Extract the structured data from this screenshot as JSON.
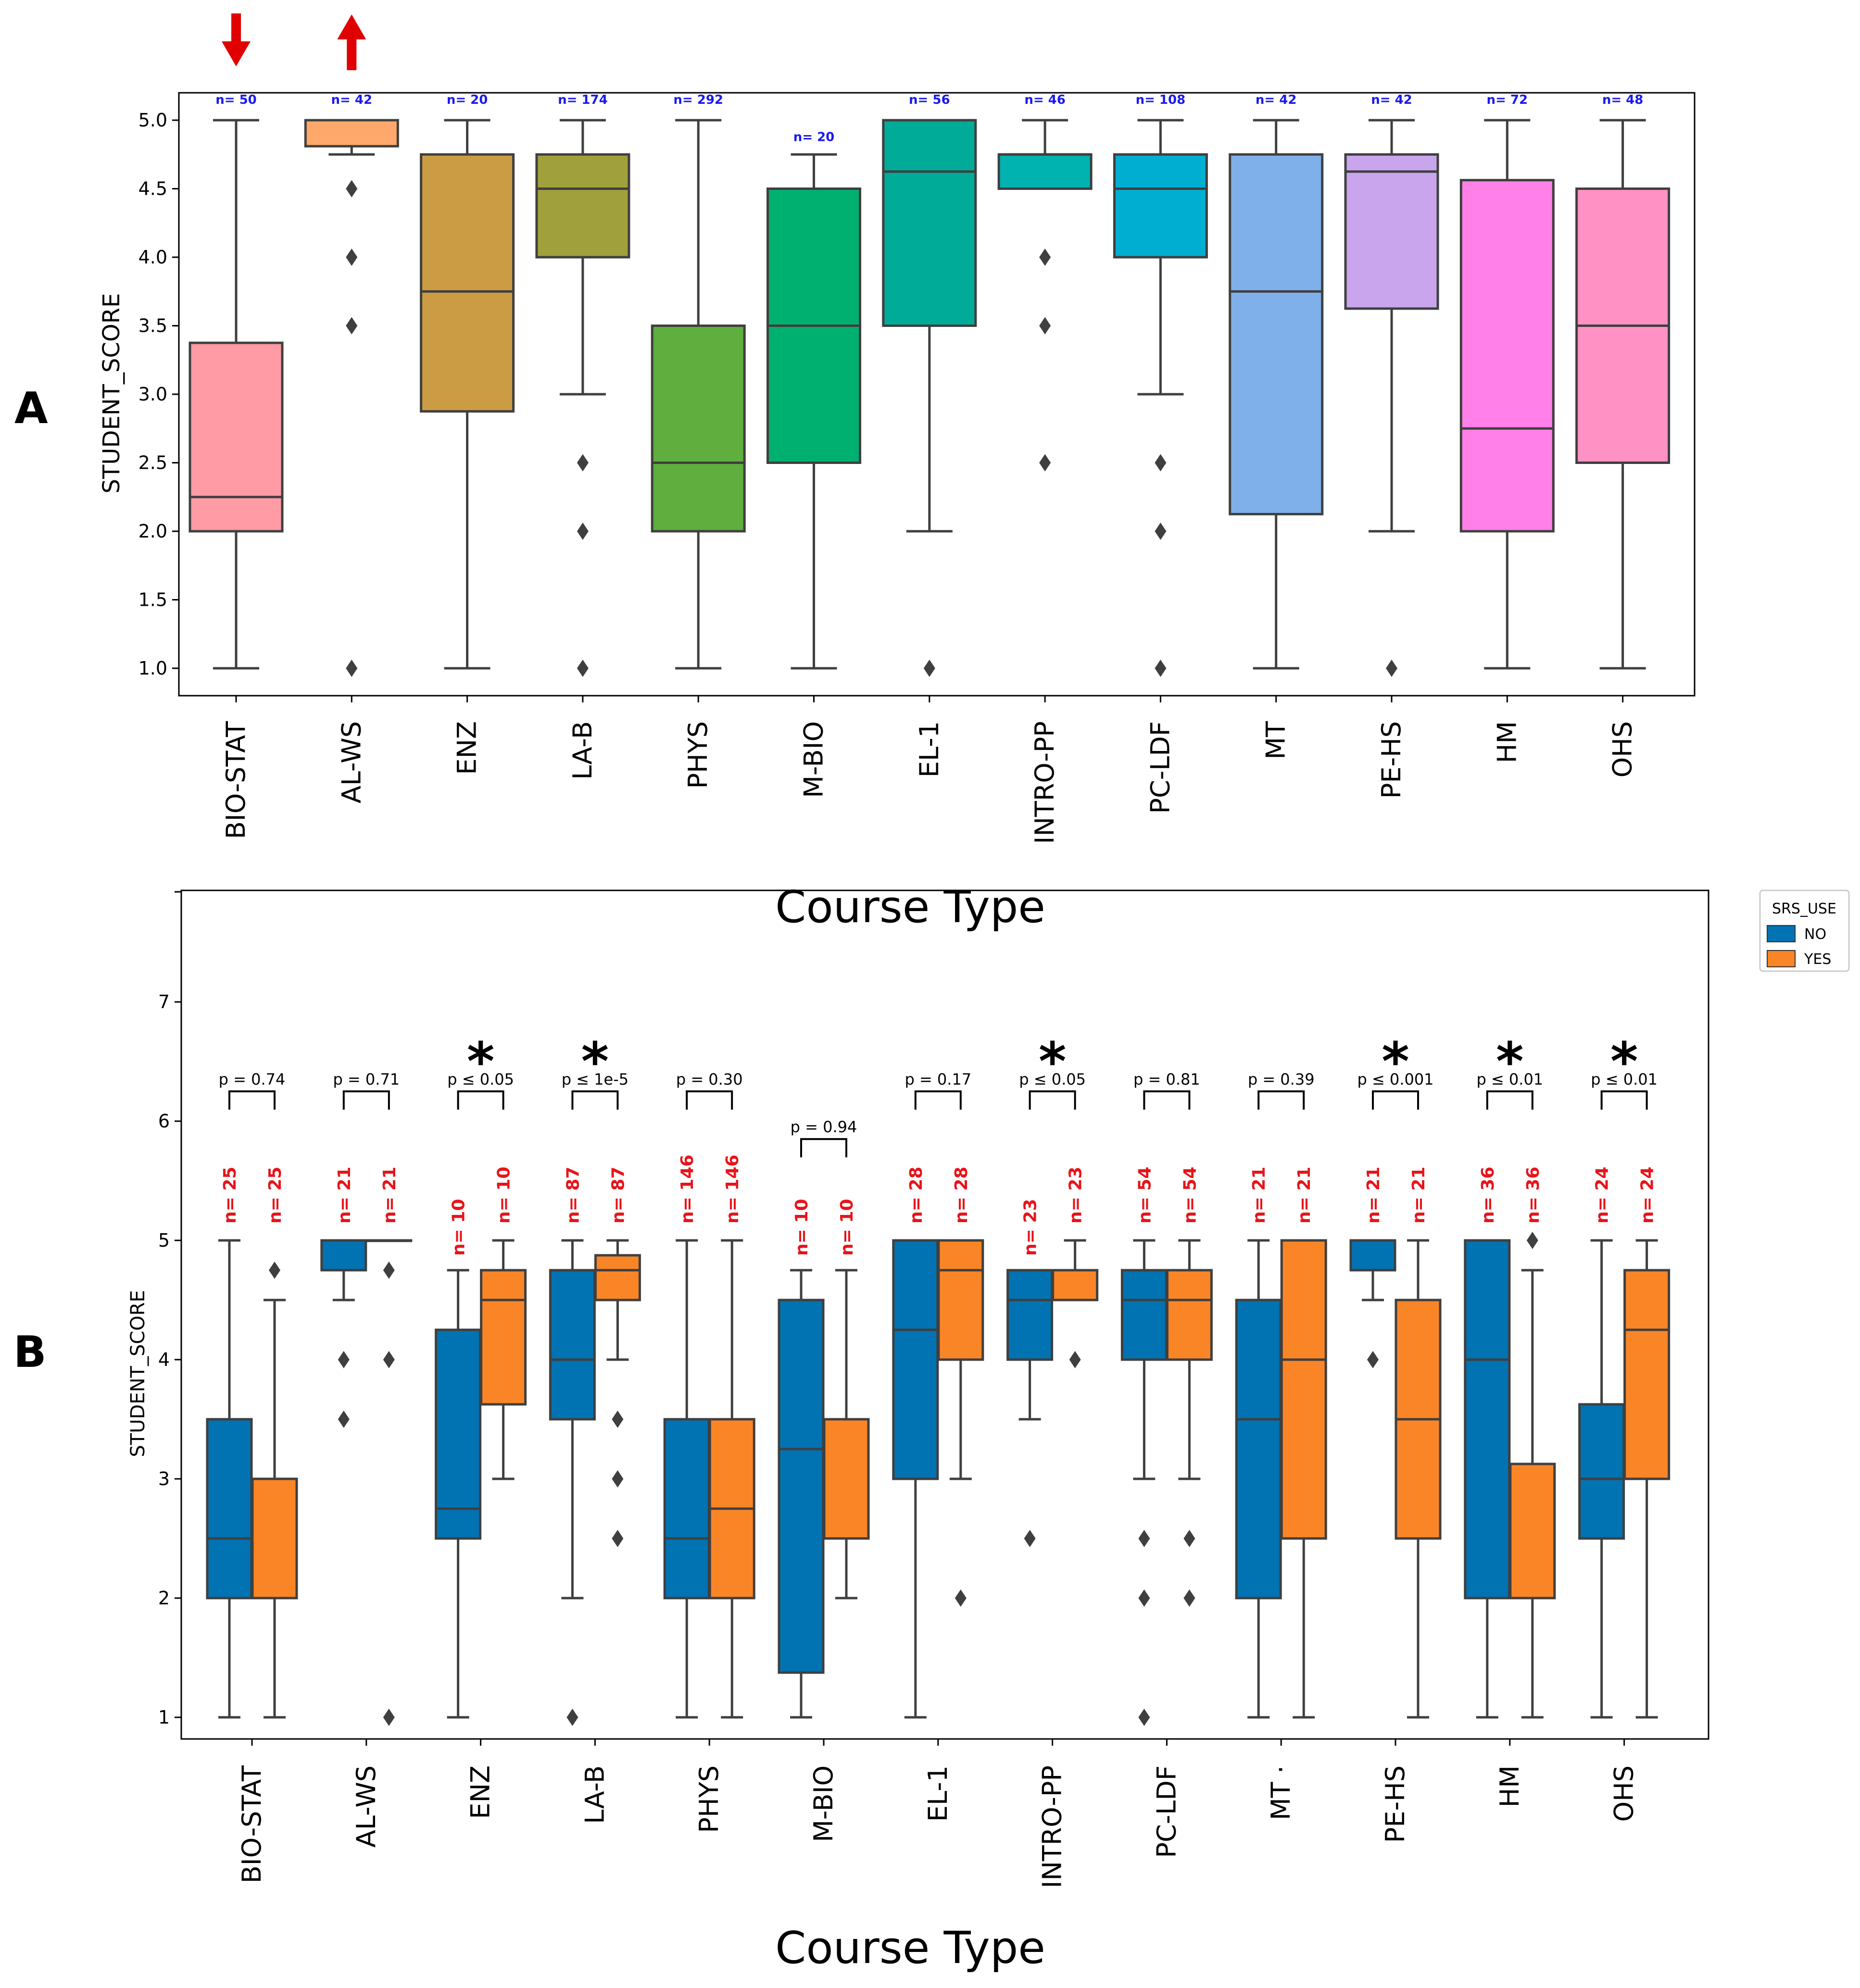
{
  "chart_data": [
    {
      "panel": "A",
      "type": "box",
      "ylabel": "STUDENT_SCORE",
      "xlabel": "Course Type",
      "ylim": [
        0.9,
        5.2
      ],
      "yticks": [
        1.0,
        1.5,
        2.0,
        2.5,
        3.0,
        3.5,
        4.0,
        4.5,
        5.0
      ],
      "yticklabels": [
        "1.0",
        "1.5",
        "2.0",
        "2.5",
        "3.0",
        "3.5",
        "4.0",
        "4.5",
        "5.0"
      ],
      "markers": [
        {
          "category": "BIO-STAT",
          "direction": "down",
          "color": "#e00000"
        },
        {
          "category": "AL-WS",
          "direction": "up",
          "color": "#e00000"
        }
      ],
      "boxes": [
        {
          "category": "BIO-STAT",
          "color": "#ff9ba5",
          "n_label": "n= 50",
          "whislo": 1.0,
          "q1": 2.0,
          "med": 2.25,
          "q3": 3.375,
          "whishi": 5.0,
          "fliers": []
        },
        {
          "category": "AL-WS",
          "color": "#ffa86b",
          "n_label": "n= 42",
          "whislo": 4.75,
          "q1": 4.81,
          "med": 5.0,
          "q3": 5.0,
          "whishi": 5.0,
          "fliers": [
            4.5,
            4.0,
            3.5,
            1.0
          ]
        },
        {
          "category": "ENZ",
          "color": "#cc9c45",
          "n_label": "n= 20",
          "whislo": 1.0,
          "q1": 2.875,
          "med": 3.75,
          "q3": 4.75,
          "whishi": 5.0,
          "fliers": []
        },
        {
          "category": "LA-B",
          "color": "#a0a03c",
          "n_label": "n= 174",
          "whislo": 3.0,
          "q1": 4.0,
          "med": 4.5,
          "q3": 4.75,
          "whishi": 5.0,
          "fliers": [
            2.5,
            2.0,
            1.0
          ]
        },
        {
          "category": "PHYS",
          "color": "#5fae3e",
          "n_label": "n= 292",
          "whislo": 1.0,
          "q1": 2.0,
          "med": 2.5,
          "q3": 3.5,
          "whishi": 5.0,
          "fliers": []
        },
        {
          "category": "M-BIO",
          "color": "#00b070",
          "n_label": "n= 20",
          "whislo": 1.0,
          "q1": 2.5,
          "med": 3.5,
          "q3": 4.5,
          "whishi": 4.75,
          "fliers": []
        },
        {
          "category": "EL-1",
          "color": "#00ab98",
          "n_label": "n= 56",
          "whislo": 2.0,
          "q1": 3.5,
          "med": 4.625,
          "q3": 5.0,
          "whishi": 5.0,
          "fliers": [
            1.0
          ]
        },
        {
          "category": "INTRO-PP",
          "color": "#00b2b0",
          "n_label": "n= 46",
          "whislo": 4.5,
          "q1": 4.5,
          "med": 4.75,
          "q3": 4.75,
          "whishi": 5.0,
          "fliers": [
            4.0,
            3.5,
            2.5
          ]
        },
        {
          "category": "PC-LDF",
          "color": "#00aed2",
          "n_label": "n= 108",
          "whislo": 3.0,
          "q1": 4.0,
          "med": 4.5,
          "q3": 4.75,
          "whishi": 5.0,
          "fliers": [
            2.5,
            2.0,
            1.0
          ]
        },
        {
          "category": "MT",
          "color": "#7fb0ea",
          "n_label": "n= 42",
          "whislo": 1.0,
          "q1": 2.125,
          "med": 3.75,
          "q3": 4.75,
          "whishi": 5.0,
          "fliers": []
        },
        {
          "category": "PE-HS",
          "color": "#c8a5ec",
          "n_label": "n= 42",
          "whislo": 2.0,
          "q1": 3.625,
          "med": 4.625,
          "q3": 4.75,
          "whishi": 5.0,
          "fliers": [
            1.0
          ]
        },
        {
          "category": "HM",
          "color": "#ff80e8",
          "n_label": "n= 72",
          "whislo": 1.0,
          "q1": 2.0,
          "med": 2.75,
          "q3": 4.5625,
          "whishi": 5.0,
          "fliers": []
        },
        {
          "category": "OHS",
          "color": "#ff91c4",
          "n_label": "n= 48",
          "whislo": 1.0,
          "q1": 2.5,
          "med": 3.5,
          "q3": 4.5,
          "whishi": 5.0,
          "fliers": []
        }
      ]
    },
    {
      "panel": "B",
      "type": "box",
      "ylabel": "STUDENT_SCORE",
      "xlabel": "Course Type",
      "ylim": [
        0.8,
        7.9
      ],
      "yticks": [
        1,
        2,
        3,
        4,
        5,
        6,
        7
      ],
      "yticklabels": [
        "1",
        "2",
        "3",
        "4",
        "5",
        "6",
        "7"
      ],
      "legend": {
        "title": "SRS_USE",
        "placement": "outside-top-right",
        "entries": [
          {
            "label": "NO",
            "color": "#0173b2"
          },
          {
            "label": "YES",
            "color": "#fa8526"
          }
        ]
      },
      "groups": [
        {
          "category": "BIO-STAT",
          "axis_label": "BIO-STAT",
          "p_label": "p = 0.74",
          "significant": false,
          "bracket_y": 6.25,
          "NO": {
            "n_label": "n= 25",
            "whislo": 1,
            "q1": 2,
            "med": 2.5,
            "q3": 3.5,
            "whishi": 5,
            "fliers": []
          },
          "YES": {
            "n_label": "n= 25",
            "whislo": 1,
            "q1": 2,
            "med": 2,
            "q3": 3,
            "whishi": 4.5,
            "fliers": [
              4.75
            ]
          }
        },
        {
          "category": "AL-WS",
          "axis_label": "AL-WS",
          "p_label": "p = 0.71",
          "significant": false,
          "bracket_y": 6.25,
          "NO": {
            "n_label": "n= 21",
            "whislo": 4.5,
            "q1": 4.75,
            "med": 5,
            "q3": 5,
            "whishi": 5,
            "fliers": [
              4,
              3.5
            ]
          },
          "YES": {
            "n_label": "n= 21",
            "whislo": 5,
            "q1": 5,
            "med": 5,
            "q3": 5,
            "whishi": 5,
            "fliers": [
              4.75,
              4,
              1
            ]
          }
        },
        {
          "category": "ENZ",
          "axis_label": "ENZ",
          "p_label": "p ≤ 0.05",
          "significant": true,
          "bracket_y": 6.25,
          "NO": {
            "n_label": "n= 10",
            "whislo": 1,
            "q1": 2.5,
            "med": 2.75,
            "q3": 4.25,
            "whishi": 4.75,
            "fliers": []
          },
          "YES": {
            "n_label": "n= 10",
            "whislo": 3,
            "q1": 3.625,
            "med": 4.5,
            "q3": 4.75,
            "whishi": 5,
            "fliers": []
          }
        },
        {
          "category": "LA-B",
          "axis_label": "LA-B",
          "p_label": "p ≤ 1e-5",
          "significant": true,
          "bracket_y": 6.25,
          "NO": {
            "n_label": "n= 87",
            "whislo": 2,
            "q1": 3.5,
            "med": 4,
            "q3": 4.75,
            "whishi": 5,
            "fliers": [
              1
            ]
          },
          "YES": {
            "n_label": "n= 87",
            "whislo": 4,
            "q1": 4.5,
            "med": 4.75,
            "q3": 4.875,
            "whishi": 5,
            "fliers": [
              3.5,
              3,
              2.5
            ]
          }
        },
        {
          "category": "PHYS",
          "axis_label": "PHYS",
          "p_label": "p = 0.30",
          "significant": false,
          "bracket_y": 6.25,
          "NO": {
            "n_label": "n= 146",
            "whislo": 1,
            "q1": 2,
            "med": 2.5,
            "q3": 3.5,
            "whishi": 5,
            "fliers": []
          },
          "YES": {
            "n_label": "n= 146",
            "whislo": 1,
            "q1": 2,
            "med": 2.75,
            "q3": 3.5,
            "whishi": 5,
            "fliers": []
          }
        },
        {
          "category": "M-BIO",
          "axis_label": "M-BIO",
          "p_label": "p = 0.94",
          "significant": false,
          "bracket_y": 5.85,
          "NO": {
            "n_label": "n= 10",
            "whislo": 1,
            "q1": 1.375,
            "med": 3.25,
            "q3": 4.5,
            "whishi": 4.75,
            "fliers": []
          },
          "YES": {
            "n_label": "n= 10",
            "whislo": 2,
            "q1": 2.5,
            "med": 2.5,
            "q3": 3.5,
            "whishi": 4.75,
            "fliers": []
          }
        },
        {
          "category": "EL-1",
          "axis_label": "EL-1",
          "p_label": "p = 0.17",
          "significant": false,
          "bracket_y": 6.25,
          "NO": {
            "n_label": "n= 28",
            "whislo": 1,
            "q1": 3,
            "med": 4.25,
            "q3": 5,
            "whishi": 5,
            "fliers": []
          },
          "YES": {
            "n_label": "n= 28",
            "whislo": 3,
            "q1": 4,
            "med": 4.75,
            "q3": 5,
            "whishi": 5,
            "fliers": [
              2
            ]
          }
        },
        {
          "category": "INTRO-PP",
          "axis_label": "INTRO-PP",
          "p_label": "p ≤ 0.05",
          "significant": true,
          "bracket_y": 6.25,
          "NO": {
            "n_label": "n= 23",
            "whislo": 3.5,
            "q1": 4,
            "med": 4.5,
            "q3": 4.75,
            "whishi": 4.75,
            "fliers": [
              2.5
            ]
          },
          "YES": {
            "n_label": "n= 23",
            "whislo": 4.5,
            "q1": 4.5,
            "med": 4.75,
            "q3": 4.75,
            "whishi": 5,
            "fliers": [
              4
            ]
          }
        },
        {
          "category": "PC-LDF",
          "axis_label": "PC-LDF",
          "p_label": "p = 0.81",
          "significant": false,
          "bracket_y": 6.25,
          "NO": {
            "n_label": "n= 54",
            "whislo": 3,
            "q1": 4,
            "med": 4.5,
            "q3": 4.75,
            "whishi": 5,
            "fliers": [
              2.5,
              2,
              1
            ]
          },
          "YES": {
            "n_label": "n= 54",
            "whislo": 3,
            "q1": 4,
            "med": 4.5,
            "q3": 4.75,
            "whishi": 5,
            "fliers": [
              2.5,
              2
            ]
          }
        },
        {
          "category": "MT",
          "axis_label": "MT ·",
          "p_label": "p = 0.39",
          "significant": false,
          "bracket_y": 6.25,
          "NO": {
            "n_label": "n= 21",
            "whislo": 1,
            "q1": 2,
            "med": 3.5,
            "q3": 4.5,
            "whishi": 5,
            "fliers": []
          },
          "YES": {
            "n_label": "n= 21",
            "whislo": 1,
            "q1": 2.5,
            "med": 4,
            "q3": 5,
            "whishi": 5,
            "fliers": []
          }
        },
        {
          "category": "PE-HS",
          "axis_label": "PE-HS",
          "p_label": "p ≤ 0.001",
          "significant": true,
          "bracket_y": 6.25,
          "NO": {
            "n_label": "n= 21",
            "whislo": 4.5,
            "q1": 4.75,
            "med": 5,
            "q3": 5,
            "whishi": 5,
            "fliers": [
              4
            ]
          },
          "YES": {
            "n_label": "n= 21",
            "whislo": 1,
            "q1": 2.5,
            "med": 3.5,
            "q3": 4.5,
            "whishi": 5,
            "fliers": []
          }
        },
        {
          "category": "HM",
          "axis_label": "HM",
          "p_label": "p ≤ 0.01",
          "significant": true,
          "bracket_y": 6.25,
          "NO": {
            "n_label": "n= 36",
            "whislo": 1,
            "q1": 2,
            "med": 4,
            "q3": 5,
            "whishi": 5,
            "fliers": []
          },
          "YES": {
            "n_label": "n= 36",
            "whislo": 1,
            "q1": 2,
            "med": 2,
            "q3": 3.125,
            "whishi": 4.75,
            "fliers": [
              5
            ]
          }
        },
        {
          "category": "OHS",
          "axis_label": "OHS",
          "p_label": "p ≤ 0.01",
          "significant": true,
          "bracket_y": 6.25,
          "NO": {
            "n_label": "n= 24",
            "whislo": 1,
            "q1": 2.5,
            "med": 3,
            "q3": 3.625,
            "whishi": 5,
            "fliers": []
          },
          "YES": {
            "n_label": "n= 24",
            "whislo": 1,
            "q1": 3,
            "med": 4.25,
            "q3": 4.75,
            "whishi": 5,
            "fliers": []
          }
        }
      ]
    }
  ]
}
